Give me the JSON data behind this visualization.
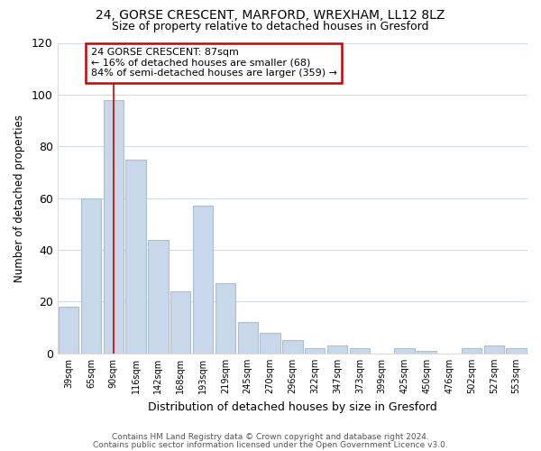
{
  "title1": "24, GORSE CRESCENT, MARFORD, WREXHAM, LL12 8LZ",
  "title2": "Size of property relative to detached houses in Gresford",
  "xlabel": "Distribution of detached houses by size in Gresford",
  "ylabel": "Number of detached properties",
  "categories": [
    "39sqm",
    "65sqm",
    "90sqm",
    "116sqm",
    "142sqm",
    "168sqm",
    "193sqm",
    "219sqm",
    "245sqm",
    "270sqm",
    "296sqm",
    "322sqm",
    "347sqm",
    "373sqm",
    "399sqm",
    "425sqm",
    "450sqm",
    "476sqm",
    "502sqm",
    "527sqm",
    "553sqm"
  ],
  "values": [
    18,
    60,
    98,
    75,
    44,
    24,
    57,
    27,
    12,
    8,
    5,
    2,
    3,
    2,
    0,
    2,
    1,
    0,
    2,
    3,
    2
  ],
  "bar_color": "#c8d8ea",
  "bar_edgecolor": "#aabfcf",
  "vline_x": 2,
  "vline_color": "#cc0000",
  "annotation_text": "24 GORSE CRESCENT: 87sqm\n← 16% of detached houses are smaller (68)\n84% of semi-detached houses are larger (359) →",
  "annotation_box_facecolor": "#ffffff",
  "annotation_box_edgecolor": "#cc0000",
  "ylim": [
    0,
    120
  ],
  "yticks": [
    0,
    20,
    40,
    60,
    80,
    100,
    120
  ],
  "footer1": "Contains HM Land Registry data © Crown copyright and database right 2024.",
  "footer2": "Contains public sector information licensed under the Open Government Licence v3.0.",
  "bg_color": "#ffffff",
  "plot_bg_color": "#ffffff",
  "grid_color": "#d0dce8"
}
